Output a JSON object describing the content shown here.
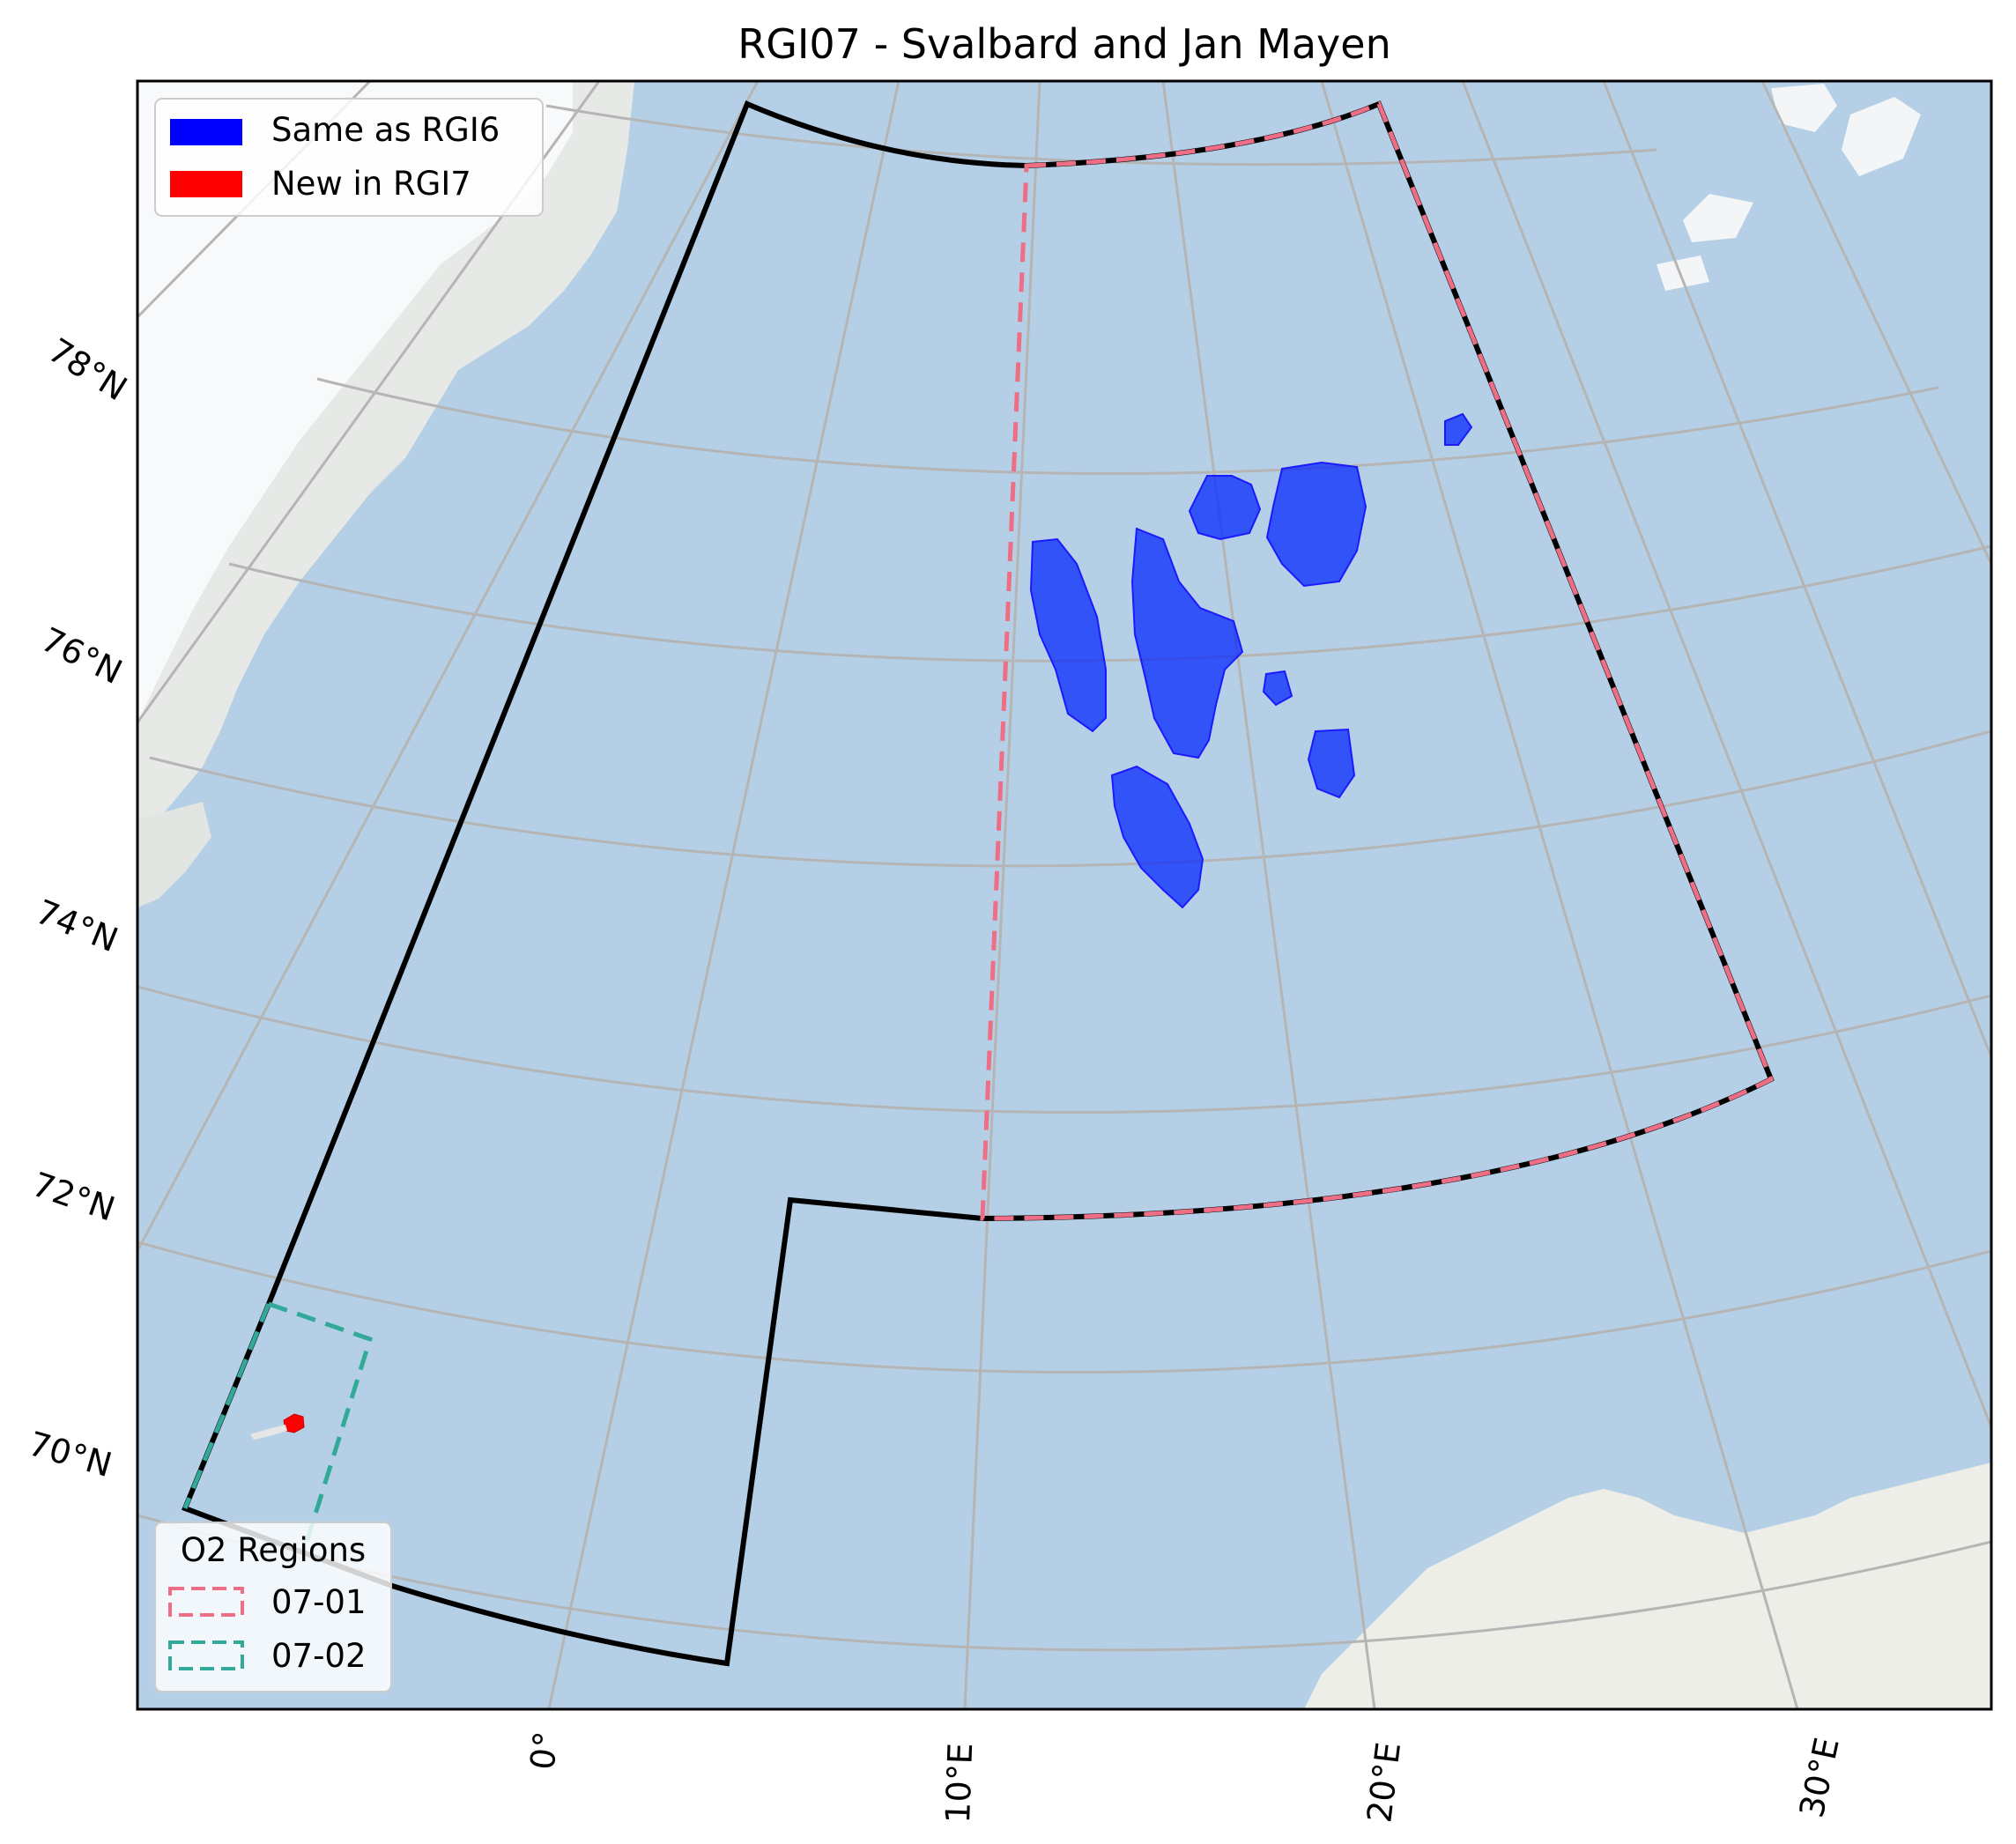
{
  "title": "RGI07 - Svalbard and Jan Mayen",
  "colors": {
    "ocean": "#b5d0e6",
    "land": "#eef0ea",
    "ice": "#f5f7fa",
    "graticule": "#b5b5b5",
    "same_as_rgi6": "#0000ff",
    "new_in_rgi7": "#ff0000",
    "region_07_01": "#ee6e85",
    "region_07_02": "#33aa99",
    "boundary": "#000000"
  },
  "lat_labels": [
    "78°N",
    "76°N",
    "74°N",
    "72°N",
    "70°N"
  ],
  "lon_labels": [
    "0°",
    "10°E",
    "20°E",
    "30°E"
  ],
  "legend_glaciers": {
    "items": [
      {
        "label": "Same as RGI6",
        "color": "#0000ff"
      },
      {
        "label": "New in RGI7",
        "color": "#ff0000"
      }
    ]
  },
  "legend_regions": {
    "title": "O2 Regions",
    "items": [
      {
        "label": "07-01",
        "color": "#ee6e85"
      },
      {
        "label": "07-02",
        "color": "#33aa99"
      }
    ]
  }
}
